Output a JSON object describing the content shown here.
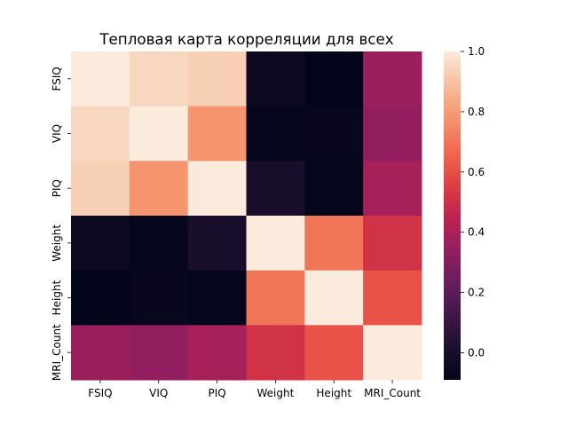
{
  "chart_data": {
    "type": "heatmap",
    "title": "Тепловая карта корреляции для всех",
    "x_labels": [
      "FSIQ",
      "VIQ",
      "PIQ",
      "Weight",
      "Height",
      "MRI_Count"
    ],
    "y_labels": [
      "FSIQ",
      "VIQ",
      "PIQ",
      "Weight",
      "Height",
      "MRI_Count"
    ],
    "matrix": [
      [
        1.0,
        0.95,
        0.93,
        -0.05,
        -0.09,
        0.36
      ],
      [
        0.95,
        1.0,
        0.78,
        -0.08,
        -0.07,
        0.34
      ],
      [
        0.93,
        0.78,
        1.0,
        0.0,
        -0.08,
        0.39
      ],
      [
        -0.05,
        -0.08,
        0.0,
        1.0,
        0.7,
        0.51
      ],
      [
        -0.09,
        -0.07,
        -0.08,
        0.7,
        1.0,
        0.61
      ],
      [
        0.36,
        0.34,
        0.39,
        0.51,
        0.61,
        1.0
      ]
    ],
    "vmin": -0.09,
    "vmax": 1.0,
    "colormap": "rocket",
    "colorbar_ticks": [
      0.0,
      0.2,
      0.4,
      0.6,
      0.8,
      1.0
    ],
    "colorbar_tick_labels": [
      "0.0",
      "0.2",
      "0.4",
      "0.6",
      "0.8",
      "1.0"
    ]
  }
}
